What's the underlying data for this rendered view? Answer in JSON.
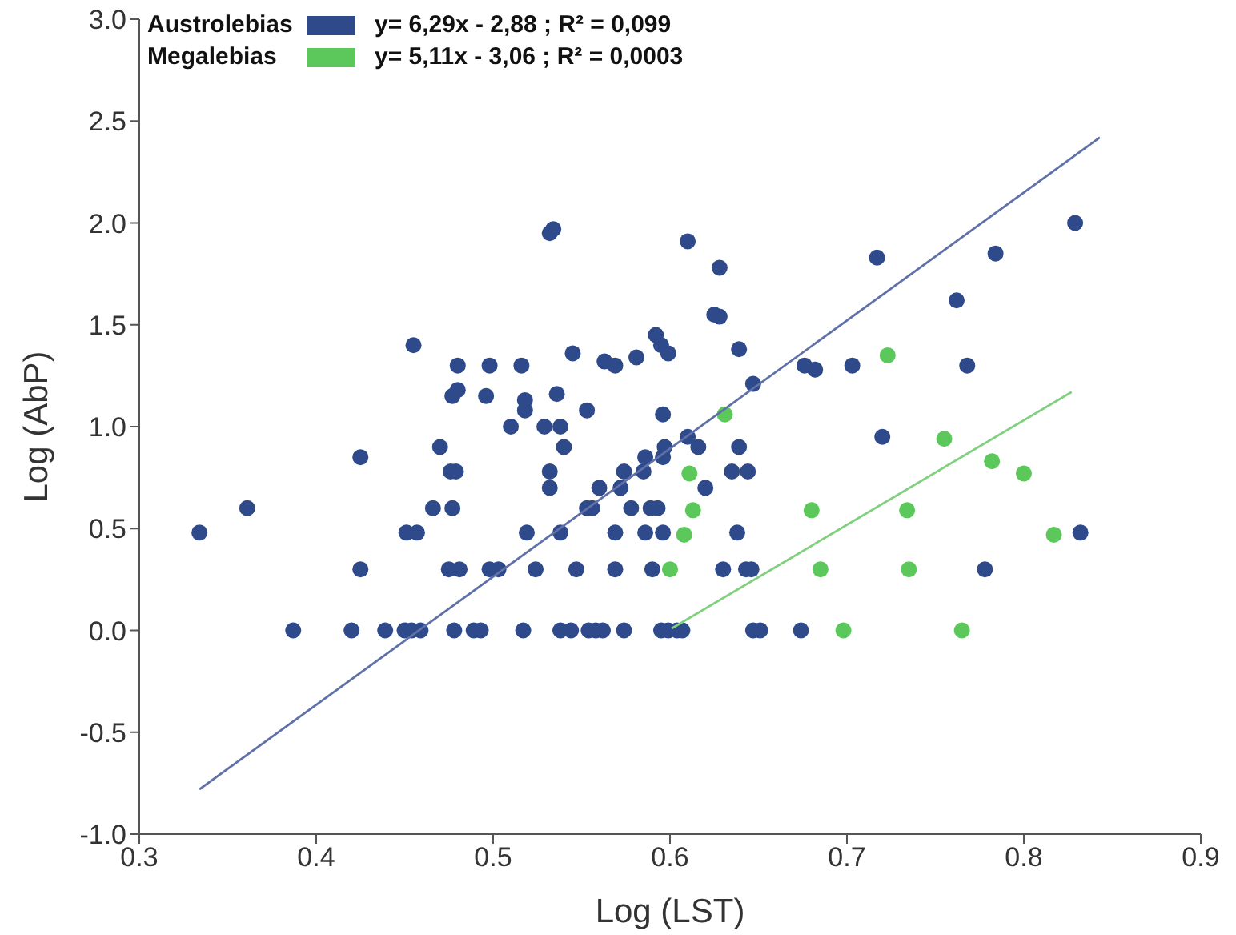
{
  "chart_data": {
    "type": "scatter",
    "xlabel": "Log (LST)",
    "ylabel": "Log (AbP)",
    "xlim": [
      0.3,
      0.9
    ],
    "xticks": [
      0.3,
      0.4,
      0.5,
      0.6,
      0.7,
      0.8,
      0.9
    ],
    "ylim": [
      -1,
      3
    ],
    "yticks": [
      {
        "value": -1,
        "label": "-1.0"
      },
      -0.5,
      {
        "value": 0,
        "label": "0.0"
      },
      0.5,
      {
        "value": 1,
        "label": "1.0"
      },
      1.5,
      {
        "value": 2,
        "label": "2.0"
      },
      2.5,
      {
        "value": 3,
        "label": "3.0"
      }
    ],
    "grid": false,
    "legend": "top left",
    "marker": "circle",
    "annotations": [
      "y= 6,29x - 2,88 ; R² = 0,099",
      "y= 5,11x - 3,06 ; R² = 0,0003"
    ],
    "series": [
      {
        "name": "Austrolebias",
        "color": "#2e4a8a",
        "x": [
          0.387,
          0.42,
          0.439,
          0.45,
          0.454,
          0.459,
          0.478,
          0.489,
          0.493,
          0.517,
          0.538,
          0.544,
          0.554,
          0.558,
          0.562,
          0.574,
          0.595,
          0.599,
          0.604,
          0.607,
          0.647,
          0.651,
          0.674,
          0.425,
          0.475,
          0.481,
          0.498,
          0.503,
          0.524,
          0.547,
          0.569,
          0.59,
          0.63,
          0.643,
          0.646,
          0.778,
          0.334,
          0.451,
          0.457,
          0.519,
          0.538,
          0.569,
          0.586,
          0.596,
          0.638,
          0.832,
          0.361,
          0.466,
          0.477,
          0.553,
          0.556,
          0.578,
          0.589,
          0.593,
          0.532,
          0.56,
          0.572,
          0.62,
          0.476,
          0.479,
          0.532,
          0.574,
          0.585,
          0.635,
          0.644,
          0.425,
          0.586,
          0.596,
          0.47,
          0.54,
          0.597,
          0.616,
          0.639,
          0.61,
          0.72,
          0.51,
          0.529,
          0.538,
          0.553,
          0.596,
          0.518,
          0.518,
          0.536,
          0.477,
          0.48,
          0.496,
          0.48,
          0.498,
          0.516,
          0.455,
          0.532,
          0.534,
          0.61,
          0.628,
          0.625,
          0.628,
          0.592,
          0.595,
          0.599,
          0.545,
          0.563,
          0.569,
          0.581,
          0.639,
          0.676,
          0.682,
          0.703,
          0.647,
          0.717,
          0.784,
          0.829,
          0.762,
          0.768
        ],
        "values": [
          0,
          0,
          0,
          0,
          0,
          0,
          0,
          0,
          0,
          0,
          0,
          0,
          0,
          0,
          0,
          0,
          0,
          0,
          0,
          0,
          0,
          0,
          0,
          0.3,
          0.3,
          0.3,
          0.3,
          0.3,
          0.3,
          0.3,
          0.3,
          0.3,
          0.3,
          0.3,
          0.3,
          0.3,
          0.48,
          0.48,
          0.48,
          0.48,
          0.48,
          0.48,
          0.48,
          0.48,
          0.48,
          0.48,
          0.6,
          0.6,
          0.6,
          0.6,
          0.6,
          0.6,
          0.6,
          0.6,
          0.7,
          0.7,
          0.7,
          0.7,
          0.78,
          0.78,
          0.78,
          0.78,
          0.78,
          0.78,
          0.78,
          0.85,
          0.85,
          0.85,
          0.9,
          0.9,
          0.9,
          0.9,
          0.9,
          0.95,
          0.95,
          1.0,
          1.0,
          1.0,
          1.08,
          1.06,
          1.08,
          1.13,
          1.16,
          1.15,
          1.18,
          1.15,
          1.3,
          1.3,
          1.3,
          1.4,
          1.95,
          1.97,
          1.91,
          1.78,
          1.55,
          1.54,
          1.45,
          1.4,
          1.36,
          1.36,
          1.32,
          1.3,
          1.34,
          1.38,
          1.3,
          1.28,
          1.3,
          1.21,
          1.83,
          1.85,
          2.0,
          1.62,
          1.3
        ]
      },
      {
        "name": "Megalebias",
        "color": "#5cc85c",
        "x": [
          0.631,
          0.611,
          0.613,
          0.608,
          0.6,
          0.68,
          0.685,
          0.698,
          0.723,
          0.755,
          0.782,
          0.8,
          0.734,
          0.817,
          0.735,
          0.765
        ],
        "values": [
          1.06,
          0.77,
          0.59,
          0.47,
          0.3,
          0.59,
          0.3,
          0,
          1.35,
          0.94,
          0.83,
          0.77,
          0.59,
          0.47,
          0.3,
          0
        ]
      },
      {
        "type": "line",
        "color": "#6070a8",
        "marker": "none",
        "x": [
          0.334,
          0.843
        ],
        "values": [
          -0.78,
          2.42
        ]
      },
      {
        "type": "line",
        "color": "#80d080",
        "marker": "none",
        "x": [
          0.601,
          0.827
        ],
        "values": [
          0.01,
          1.17
        ]
      }
    ]
  }
}
